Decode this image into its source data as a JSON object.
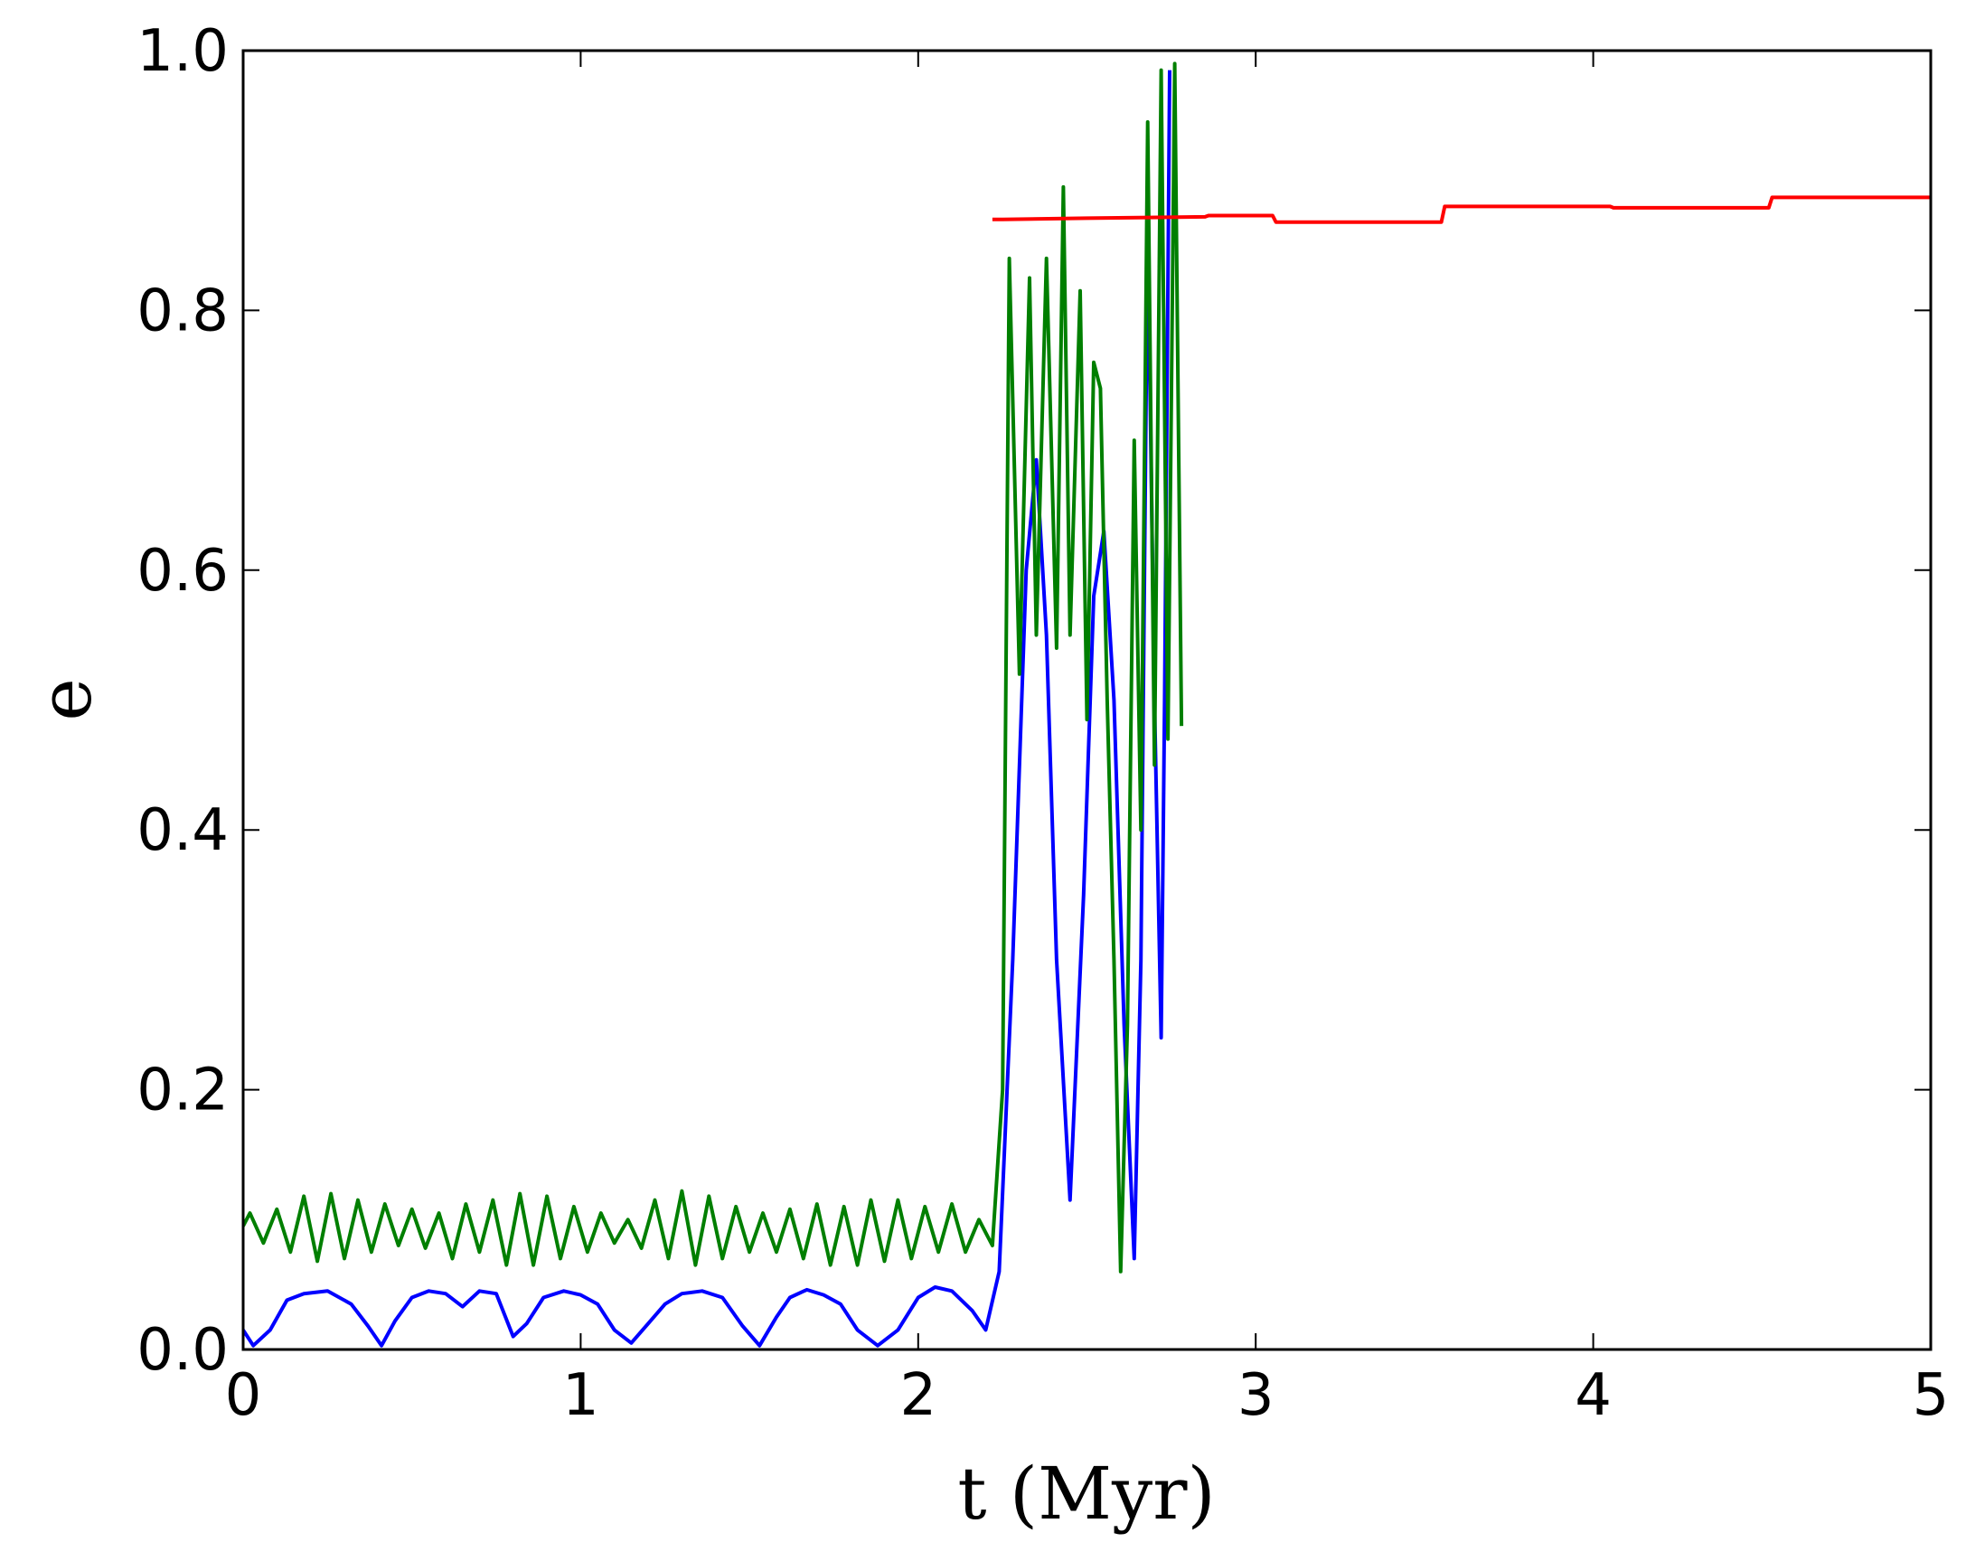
{
  "chart_data": {
    "type": "line",
    "title": "",
    "xlabel": "t (Myr)",
    "ylabel": "e",
    "xlim": [
      0,
      5
    ],
    "ylim": [
      0,
      1
    ],
    "grid": false,
    "legend": "none",
    "x_ticks": [
      "0",
      "1",
      "2",
      "3",
      "4",
      "5"
    ],
    "y_ticks": [
      "0.0",
      "0.2",
      "0.4",
      "0.6",
      "0.8",
      "1.0"
    ],
    "series": [
      {
        "color": "#0000ff",
        "x": [
          0.0,
          0.03,
          0.08,
          0.13,
          0.18,
          0.25,
          0.32,
          0.37,
          0.41,
          0.45,
          0.5,
          0.55,
          0.6,
          0.65,
          0.7,
          0.75,
          0.8,
          0.84,
          0.89,
          0.95,
          1.0,
          1.05,
          1.1,
          1.15,
          1.2,
          1.25,
          1.3,
          1.36,
          1.42,
          1.48,
          1.53,
          1.58,
          1.62,
          1.67,
          1.72,
          1.77,
          1.82,
          1.88,
          1.94,
          2.0,
          2.05,
          2.1,
          2.16,
          2.2,
          2.24,
          2.28,
          2.32,
          2.35,
          2.38,
          2.41,
          2.45,
          2.49,
          2.52,
          2.55,
          2.58,
          2.61,
          2.64,
          2.66,
          2.68,
          2.7,
          2.72,
          2.73,
          2.745
        ],
        "y": [
          0.015,
          0.003,
          0.015,
          0.038,
          0.043,
          0.045,
          0.035,
          0.018,
          0.003,
          0.022,
          0.04,
          0.045,
          0.043,
          0.033,
          0.045,
          0.043,
          0.01,
          0.02,
          0.04,
          0.045,
          0.042,
          0.035,
          0.015,
          0.005,
          0.02,
          0.035,
          0.043,
          0.045,
          0.04,
          0.018,
          0.003,
          0.025,
          0.04,
          0.046,
          0.042,
          0.035,
          0.015,
          0.003,
          0.015,
          0.04,
          0.048,
          0.045,
          0.03,
          0.015,
          0.06,
          0.3,
          0.6,
          0.685,
          0.55,
          0.3,
          0.115,
          0.35,
          0.58,
          0.63,
          0.5,
          0.25,
          0.07,
          0.3,
          0.865,
          0.5,
          0.24,
          0.5,
          0.985
        ]
      },
      {
        "color": "#007f00",
        "x": [
          0.0,
          0.02,
          0.06,
          0.1,
          0.14,
          0.18,
          0.22,
          0.26,
          0.3,
          0.34,
          0.38,
          0.42,
          0.46,
          0.5,
          0.54,
          0.58,
          0.62,
          0.66,
          0.7,
          0.74,
          0.78,
          0.82,
          0.86,
          0.9,
          0.94,
          0.98,
          1.02,
          1.06,
          1.1,
          1.14,
          1.18,
          1.22,
          1.26,
          1.3,
          1.34,
          1.38,
          1.42,
          1.46,
          1.5,
          1.54,
          1.58,
          1.62,
          1.66,
          1.7,
          1.74,
          1.78,
          1.82,
          1.86,
          1.9,
          1.94,
          1.98,
          2.02,
          2.06,
          2.1,
          2.14,
          2.18,
          2.22,
          2.25,
          2.27,
          2.3,
          2.33,
          2.35,
          2.38,
          2.41,
          2.43,
          2.45,
          2.48,
          2.5,
          2.52,
          2.54,
          2.56,
          2.58,
          2.6,
          2.62,
          2.64,
          2.66,
          2.68,
          2.7,
          2.72,
          2.74,
          2.76,
          2.78
        ],
        "y": [
          0.095,
          0.105,
          0.082,
          0.108,
          0.075,
          0.118,
          0.068,
          0.12,
          0.07,
          0.115,
          0.075,
          0.112,
          0.08,
          0.108,
          0.078,
          0.105,
          0.07,
          0.112,
          0.075,
          0.115,
          0.065,
          0.12,
          0.065,
          0.118,
          0.07,
          0.11,
          0.075,
          0.105,
          0.082,
          0.1,
          0.078,
          0.115,
          0.07,
          0.122,
          0.065,
          0.118,
          0.07,
          0.11,
          0.075,
          0.105,
          0.075,
          0.108,
          0.07,
          0.112,
          0.065,
          0.11,
          0.065,
          0.115,
          0.068,
          0.115,
          0.07,
          0.11,
          0.075,
          0.112,
          0.075,
          0.1,
          0.08,
          0.2,
          0.84,
          0.52,
          0.825,
          0.55,
          0.84,
          0.54,
          0.895,
          0.55,
          0.815,
          0.485,
          0.76,
          0.74,
          0.5,
          0.3,
          0.06,
          0.25,
          0.7,
          0.4,
          0.945,
          0.45,
          0.985,
          0.47,
          0.99,
          0.48
        ]
      },
      {
        "color": "#ff0000",
        "x": [
          2.22,
          2.25,
          2.5,
          2.85,
          2.86,
          3.05,
          3.06,
          3.55,
          3.56,
          3.8,
          3.81,
          4.05,
          4.06,
          4.52,
          4.53,
          5.0
        ],
        "y": [
          0.87,
          0.87,
          0.871,
          0.872,
          0.873,
          0.873,
          0.868,
          0.868,
          0.88,
          0.88,
          0.88,
          0.88,
          0.879,
          0.879,
          0.887,
          0.887
        ]
      }
    ]
  }
}
